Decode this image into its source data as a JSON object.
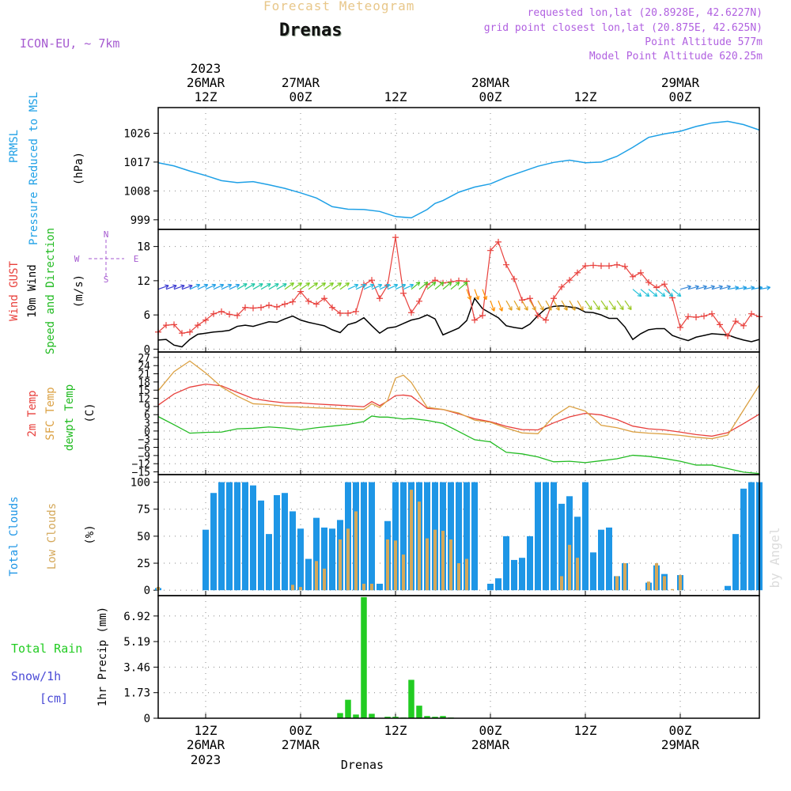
{
  "header": {
    "title": "Forecast Meteogram",
    "station": "Drenas",
    "model": "ICON-EU, ~ 7km",
    "requested": "requested lon,lat (20.8928E, 42.6227N)",
    "gridpoint": "grid point closest lon,lat (20.875E, 42.625N)",
    "point_alt": "Point Altitude 577m",
    "model_alt": "Model Point Altitude 620.25m",
    "footer_station": "Drenas",
    "watermark": "by Angel"
  },
  "time_axis": {
    "top_year": "2023",
    "ticks": [
      {
        "t": 12,
        "day": "26MAR",
        "hour": "12Z"
      },
      {
        "t": 24,
        "day": "27MAR",
        "hour": "00Z"
      },
      {
        "t": 36,
        "day": "",
        "hour": "12Z"
      },
      {
        "t": 48,
        "day": "28MAR",
        "hour": "00Z"
      },
      {
        "t": 60,
        "day": "",
        "hour": "12Z"
      },
      {
        "t": 72,
        "day": "29MAR",
        "hour": "00Z"
      }
    ],
    "bottom_year": "2023"
  },
  "panel_labels": {
    "pressure": [
      "PRMSL",
      "Pressure Reduced to MSL",
      "(hPa)"
    ],
    "wind": [
      "Wind GUST",
      "10m Wind",
      "Speed and Direction",
      "(m/s)"
    ],
    "compass": {
      "n": "N",
      "s": "S",
      "e": "E",
      "w": "W"
    },
    "temp": [
      "2m Temp",
      "SFC Temp",
      "dewpt Temp",
      "(C)"
    ],
    "clouds": [
      "Total Clouds",
      "Low Clouds",
      "(%)"
    ],
    "precip": [
      "Total  Rain",
      "Snow/1h",
      "[cm]",
      "1hr Precip (mm)"
    ]
  },
  "colors": {
    "pressure": "#1ea0e6",
    "gust": "#e8403c",
    "wind": "#000000",
    "t2m": "#e8403c",
    "sfc": "#dba042",
    "dewpt": "#22bb22",
    "total_clouds": "#1e96e6",
    "low_clouds": "#d4a85a",
    "rain": "#22cc22",
    "snow": "#4b4bd6",
    "label_purple": "#a55ad0"
  },
  "chart_data": [
    {
      "type": "line",
      "name": "pressure",
      "x_range": [
        6,
        82
      ],
      "ylim": [
        996,
        1034
      ],
      "yticks": [
        999,
        1008,
        1017,
        1026
      ],
      "x": [
        6,
        8,
        10,
        12,
        14,
        16,
        18,
        20,
        22,
        24,
        26,
        28,
        30,
        32,
        34,
        36,
        38,
        40,
        41,
        42,
        44,
        46,
        48,
        50,
        52,
        54,
        56,
        58,
        60,
        62,
        64,
        66,
        68,
        70,
        72,
        74,
        76,
        78,
        80,
        82
      ],
      "series": [
        {
          "values": [
            1016.8,
            1015.8,
            1014.2,
            1012.8,
            1011.2,
            1010.6,
            1010.9,
            1009.9,
            1008.8,
            1007.4,
            1005.8,
            1003.1,
            1002.3,
            1002.2,
            1001.6,
            1000.0,
            999.6,
            1002.2,
            1004.1,
            1005.0,
            1007.6,
            1009.2,
            1010.2,
            1012.3,
            1014.0,
            1015.7,
            1016.9,
            1017.6,
            1016.8,
            1017.0,
            1018.8,
            1021.6,
            1024.7,
            1025.8,
            1026.6,
            1028.1,
            1029.2,
            1029.7,
            1028.7,
            1027.0
          ]
        }
      ]
    },
    {
      "type": "line",
      "name": "wind",
      "x_range": [
        6,
        82
      ],
      "ylim": [
        -0.5,
        21
      ],
      "yticks": [
        0,
        6,
        12,
        18
      ],
      "x": [
        6,
        7,
        8,
        9,
        10,
        11,
        12,
        13,
        14,
        15,
        16,
        17,
        18,
        19,
        20,
        21,
        22,
        23,
        24,
        25,
        26,
        27,
        28,
        29,
        30,
        31,
        32,
        33,
        34,
        35,
        36,
        37,
        38,
        39,
        40,
        41,
        42,
        43,
        44,
        45,
        46,
        47,
        48,
        49,
        50,
        51,
        52,
        53,
        54,
        55,
        56,
        57,
        58,
        59,
        60,
        61,
        62,
        63,
        64,
        65,
        66,
        67,
        68,
        69,
        70,
        71,
        72,
        73,
        74,
        75,
        76,
        77,
        78,
        79,
        80,
        81,
        82
      ],
      "series": [
        {
          "values": [
            3.0,
            4.2,
            4.3,
            2.8,
            3.0,
            4.2,
            5.1,
            6.2,
            6.6,
            6.1,
            5.9,
            7.3,
            7.2,
            7.3,
            7.7,
            7.4,
            7.9,
            8.3,
            10.1,
            8.4,
            7.9,
            8.9,
            7.3,
            6.3,
            6.3,
            6.6,
            11.3,
            12.1,
            8.9,
            11.2,
            19.6,
            9.8,
            6.4,
            8.4,
            11.3,
            12.1,
            11.6,
            11.8,
            12.0,
            11.9,
            5.1,
            5.9,
            17.3,
            18.8,
            14.8,
            12.3,
            8.6,
            8.9,
            5.9,
            5.1,
            8.9,
            10.9,
            12.1,
            13.4,
            14.6,
            14.7,
            14.6,
            14.6,
            14.8,
            14.5,
            12.7,
            13.4,
            11.7,
            10.8,
            11.4,
            9.0,
            3.8,
            5.7,
            5.6,
            5.8,
            6.2,
            4.3,
            2.3,
            4.9,
            4.1,
            6.2,
            5.7
          ]
        },
        {
          "values": [
            1.6,
            1.7,
            0.7,
            0.4,
            1.7,
            2.6,
            2.8,
            3.0,
            3.1,
            3.3,
            4.0,
            4.2,
            4.0,
            4.4,
            4.8,
            4.7,
            5.3,
            5.8,
            5.1,
            4.7,
            4.4,
            4.1,
            3.4,
            2.9,
            4.3,
            4.7,
            5.5,
            4.1,
            2.8,
            3.7,
            3.9,
            4.5,
            5.1,
            5.4,
            6.0,
            5.3,
            2.5,
            3.1,
            3.7,
            5.0,
            8.9,
            7.1,
            6.3,
            5.5,
            4.1,
            3.8,
            3.6,
            4.4,
            5.9,
            7.1,
            7.5,
            7.6,
            7.4,
            7.2,
            6.5,
            6.4,
            6.0,
            5.4,
            5.4,
            3.9,
            1.7,
            2.7,
            3.4,
            3.6,
            3.6,
            2.4,
            1.9,
            1.5,
            2.1,
            2.4,
            2.7,
            2.6,
            2.5,
            2.0,
            1.6,
            1.3,
            1.7
          ]
        }
      ]
    },
    {
      "type": "line",
      "name": "temperature",
      "x_range": [
        6,
        82
      ],
      "ylim": [
        -16,
        29
      ],
      "yticks": [
        27,
        24,
        21,
        18,
        15,
        12,
        9,
        6,
        3,
        0,
        -3,
        -6,
        -9,
        -12,
        -15
      ],
      "x": [
        6,
        8,
        10,
        12,
        14,
        16,
        18,
        20,
        22,
        24,
        26,
        28,
        30,
        32,
        33,
        34,
        35,
        36,
        37,
        38,
        40,
        42,
        44,
        46,
        48,
        50,
        52,
        54,
        56,
        58,
        60,
        62,
        64,
        66,
        68,
        70,
        72,
        74,
        76,
        78,
        80,
        82
      ],
      "series": [
        {
          "values": [
            9.5,
            13.6,
            16.1,
            17.2,
            16.6,
            14.2,
            11.9,
            11.0,
            10.3,
            10.3,
            9.9,
            9.6,
            9.3,
            8.9,
            10.8,
            9.3,
            11.0,
            13.0,
            13.2,
            12.8,
            8.3,
            7.9,
            6.3,
            4.5,
            3.4,
            1.7,
            0.5,
            0.4,
            3.0,
            5.2,
            6.5,
            5.9,
            4.2,
            1.8,
            0.8,
            0.4,
            -0.4,
            -1.3,
            -1.9,
            -0.6,
            2.7,
            6.2
          ]
        },
        {
          "values": [
            14.8,
            21.8,
            25.7,
            21.3,
            16.2,
            12.8,
            10.0,
            9.7,
            9.1,
            8.8,
            8.5,
            8.3,
            8.0,
            7.9,
            10.0,
            8.6,
            11.2,
            19.4,
            20.5,
            17.8,
            8.7,
            7.9,
            6.6,
            4.0,
            3.2,
            1.1,
            -0.7,
            -1.0,
            5.4,
            9.1,
            7.3,
            2.1,
            1.2,
            -0.3,
            -0.8,
            -1.1,
            -1.6,
            -2.3,
            -2.8,
            -1.5,
            7.7,
            16.9
          ]
        },
        {
          "values": [
            5.3,
            2.3,
            -0.8,
            -0.5,
            -0.4,
            0.8,
            1.0,
            1.5,
            1.1,
            0.4,
            1.2,
            1.8,
            2.4,
            3.5,
            5.5,
            5.1,
            5.1,
            4.8,
            4.4,
            4.6,
            3.9,
            2.8,
            -0.2,
            -3.2,
            -4.0,
            -7.8,
            -8.4,
            -9.5,
            -11.3,
            -11.1,
            -11.6,
            -10.9,
            -10.2,
            -8.9,
            -9.3,
            -10.1,
            -11.1,
            -12.5,
            -12.5,
            -13.8,
            -15.1,
            -15.6
          ]
        }
      ]
    },
    {
      "type": "bar",
      "name": "clouds",
      "x_range": [
        6,
        82
      ],
      "ylim": [
        -5,
        107
      ],
      "yticks": [
        0,
        25,
        50,
        75,
        100
      ],
      "x": [
        6,
        7,
        8,
        9,
        10,
        11,
        12,
        13,
        14,
        15,
        16,
        17,
        18,
        19,
        20,
        21,
        22,
        23,
        24,
        25,
        26,
        27,
        28,
        29,
        30,
        31,
        32,
        33,
        34,
        35,
        36,
        37,
        38,
        39,
        40,
        41,
        42,
        43,
        44,
        45,
        46,
        47,
        48,
        49,
        50,
        51,
        52,
        53,
        54,
        55,
        56,
        57,
        58,
        59,
        60,
        61,
        62,
        63,
        64,
        65,
        66,
        67,
        68,
        69,
        70,
        71,
        72,
        73,
        74,
        75,
        76,
        77,
        78,
        79,
        80,
        81,
        82
      ],
      "series": [
        {
          "name": "Total Clouds",
          "values": [
            2,
            0,
            0,
            0,
            0,
            0,
            56,
            90,
            100,
            100,
            100,
            100,
            97,
            83,
            52,
            88,
            90,
            73,
            57,
            29,
            67,
            58,
            57,
            65,
            100,
            100,
            100,
            100,
            6,
            64,
            100,
            100,
            100,
            100,
            100,
            100,
            100,
            100,
            100,
            100,
            100,
            0,
            6,
            11,
            50,
            28,
            30,
            50,
            100,
            100,
            100,
            80,
            87,
            68,
            100,
            35,
            56,
            58,
            13,
            25,
            0,
            0,
            7,
            23,
            15,
            0,
            14,
            0,
            0,
            0,
            0,
            0,
            4,
            52,
            94,
            100,
            100
          ]
        },
        {
          "name": "Low Clouds",
          "values": [
            3,
            0,
            0,
            0,
            0,
            0,
            0,
            0,
            0,
            0,
            0,
            0,
            0,
            0,
            0,
            0,
            0,
            5,
            3,
            0,
            27,
            20,
            0,
            47,
            57,
            73,
            6,
            6,
            0,
            47,
            46,
            33,
            93,
            82,
            48,
            56,
            55,
            47,
            25,
            29,
            0,
            0,
            0,
            0,
            0,
            0,
            0,
            0,
            0,
            0,
            0,
            13,
            42,
            30,
            0,
            0,
            0,
            0,
            13,
            25,
            0,
            0,
            8,
            25,
            13,
            1,
            14,
            0,
            0,
            0,
            0,
            0,
            0,
            0,
            0,
            0,
            0
          ]
        }
      ]
    },
    {
      "type": "bar",
      "name": "precip",
      "x_range": [
        6,
        82
      ],
      "ylim": [
        0,
        8.3
      ],
      "yticks": [
        0,
        1.73,
        3.46,
        5.19,
        6.92
      ],
      "x": [
        29,
        30,
        31,
        32,
        33,
        35,
        36,
        37,
        38,
        39,
        40,
        41,
        42,
        43
      ],
      "series": [
        {
          "name": "Total Rain",
          "values": [
            0.35,
            1.25,
            0.25,
            8.2,
            0.3,
            0.1,
            0.1,
            0.05,
            2.6,
            0.85,
            0.15,
            0.1,
            0.15,
            0.05
          ]
        }
      ]
    }
  ]
}
